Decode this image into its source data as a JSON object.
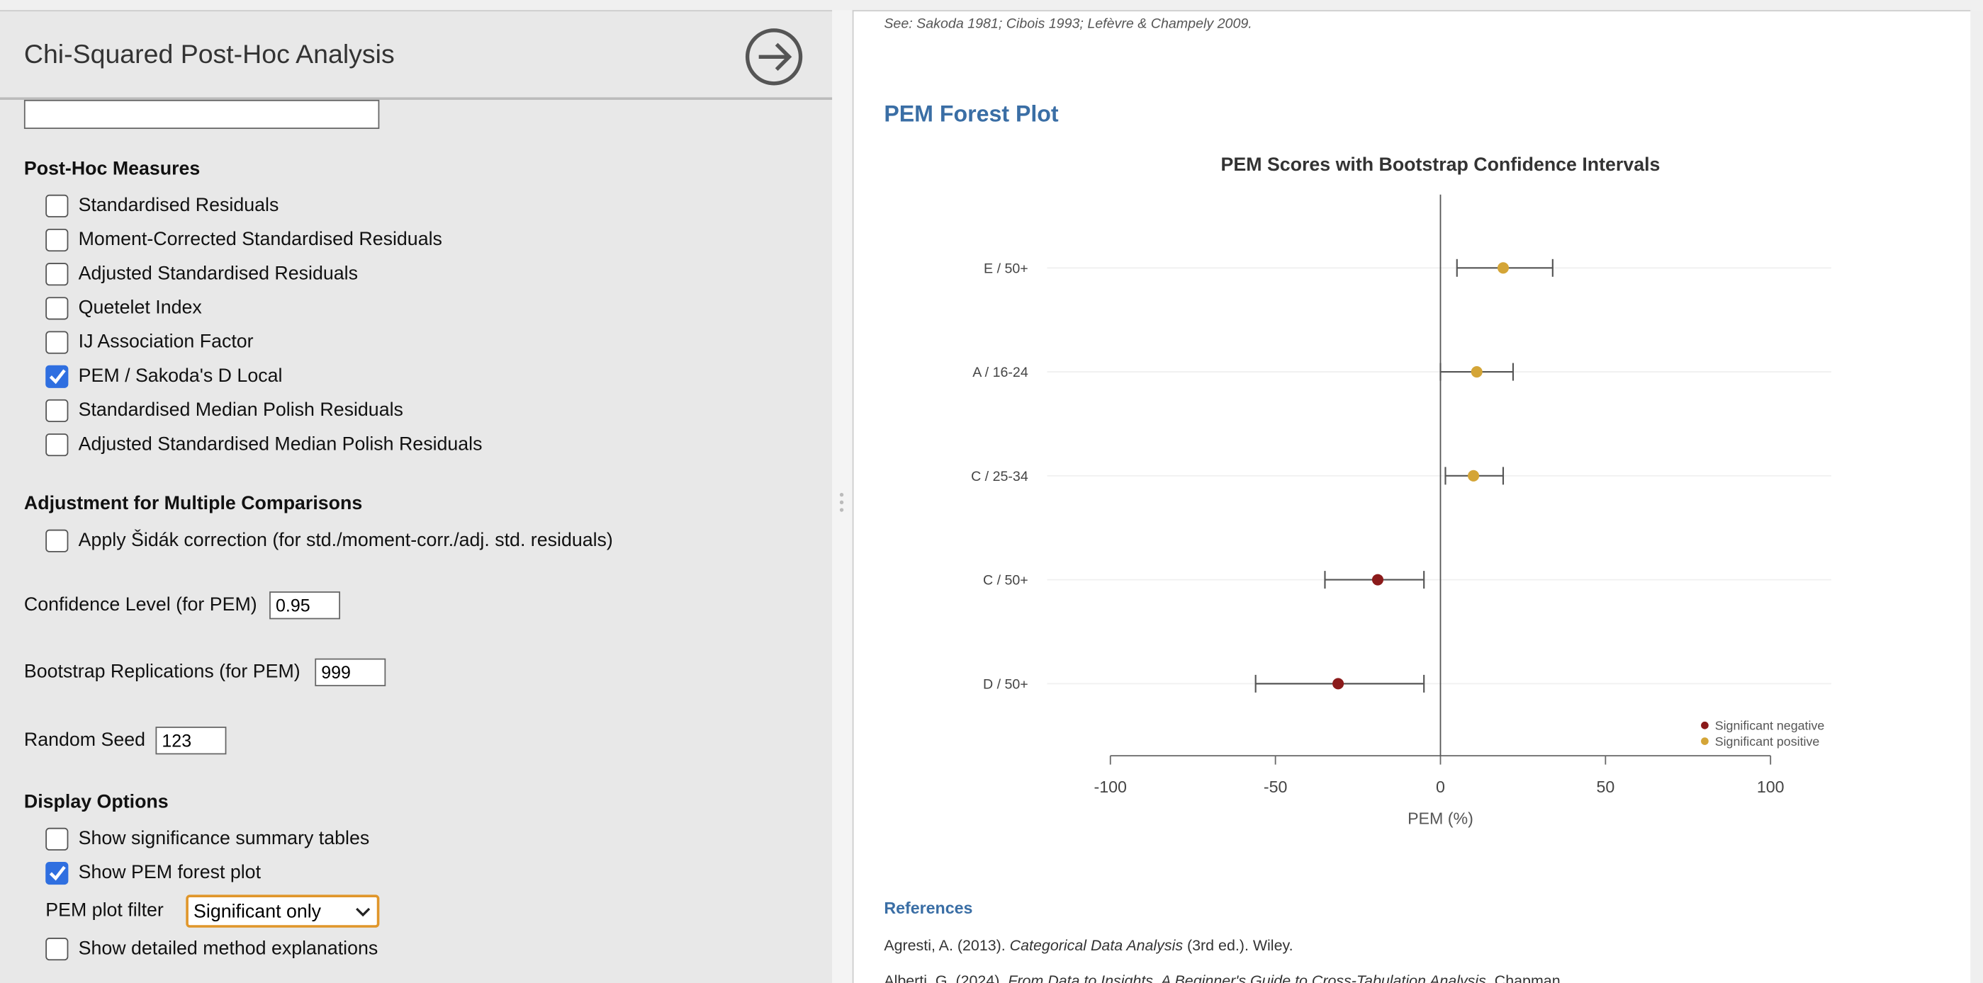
{
  "panel": {
    "title": "Chi-Squared Post-Hoc Analysis",
    "post_hoc": {
      "heading": "Post-Hoc Measures",
      "options": [
        {
          "label": "Standardised Residuals",
          "checked": false
        },
        {
          "label": "Moment-Corrected Standardised Residuals",
          "checked": false
        },
        {
          "label": "Adjusted Standardised Residuals",
          "checked": false
        },
        {
          "label": "Quetelet Index",
          "checked": false
        },
        {
          "label": "IJ Association Factor",
          "checked": false
        },
        {
          "label": "PEM / Sakoda's D Local",
          "checked": true
        },
        {
          "label": "Standardised Median Polish Residuals",
          "checked": false
        },
        {
          "label": "Adjusted Standardised Median Polish Residuals",
          "checked": false
        }
      ]
    },
    "adjustment": {
      "heading": "Adjustment for Multiple Comparisons",
      "options": [
        {
          "label": "Apply Šidák correction (for std./moment-corr./adj. std. residuals)",
          "checked": false
        }
      ]
    },
    "confidence": {
      "label": "Confidence Level (for PEM)",
      "value": 0.95
    },
    "bootstrap": {
      "label": "Bootstrap Replications (for PEM)",
      "value": 999
    },
    "seed": {
      "label": "Random Seed",
      "value": 123
    },
    "display": {
      "heading": "Display Options",
      "options": [
        {
          "label": "Show significance summary tables",
          "checked": false
        },
        {
          "label": "Show PEM forest plot",
          "checked": true
        }
      ],
      "filter": {
        "label": "PEM plot filter",
        "value": "Significant only"
      },
      "extra_option": {
        "label": "Show detailed method explanations",
        "checked": false
      }
    }
  },
  "output": {
    "citation": "See: Sakoda 1981; Cibois 1993; Lefèvre & Champely 2009.",
    "section_title": "PEM Forest Plot",
    "references": {
      "heading": "References",
      "items": [
        [
          "Agresti, A. (2013). ",
          "Categorical Data Analysis",
          " (3rd ed.). Wiley."
        ],
        [
          "Alberti, G. (2024). ",
          "From Data to Insights. A Beginner's Guide to Cross-Tabulation Analysis",
          ". Chapman"
        ]
      ]
    }
  },
  "chart_data": {
    "type": "forest",
    "title": "PEM Scores with Bootstrap Confidence Intervals",
    "x_label": "PEM (%)",
    "categories": [
      "E / 50+",
      "A / 16-24",
      "C / 25-34",
      "C / 50+",
      "D / 50+"
    ],
    "series": [
      {
        "name": "Significant negative",
        "color": "#8b1a1a",
        "values": [
          null,
          null,
          null,
          -19,
          -31
        ],
        "lower": [
          null,
          null,
          null,
          -35,
          -56
        ],
        "upper": [
          null,
          null,
          null,
          -5,
          -5
        ]
      },
      {
        "name": "Significant positive",
        "color": "#d4a537",
        "values": [
          19,
          11,
          10,
          null,
          null
        ],
        "lower": [
          5,
          0,
          1.5,
          null,
          null
        ],
        "upper": [
          34,
          22,
          19,
          null,
          null
        ]
      }
    ],
    "xlim": [
      -100,
      100
    ],
    "xticks": [
      -100,
      -50,
      0,
      50,
      100
    ],
    "legend": "lower-right"
  }
}
